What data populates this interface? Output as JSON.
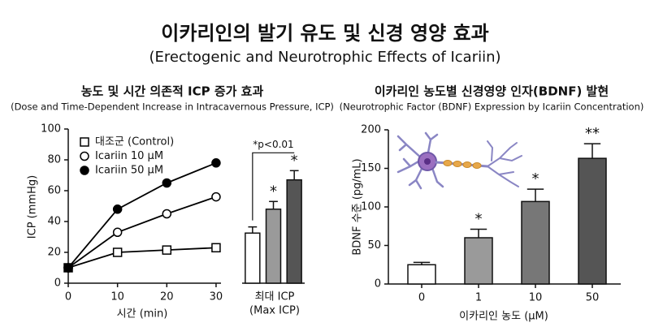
{
  "title": "이카리인의 발기 유도 및 신경 영양 효과",
  "subtitle": "(Erectogenic and Neurotrophic Effects of Icariin)",
  "chart_data": [
    {
      "type": "line",
      "title": "농도 및 시간 의존적 ICP 증가 효과",
      "subtitle": "(Dose and Time-Dependent Increase in Intracavernous Pressure, ICP)",
      "x_label": "시간 (min)",
      "y_label": "ICP (mmHg)",
      "x": [
        0,
        10,
        20,
        30
      ],
      "xlim": [
        0,
        31
      ],
      "xticks": [
        0,
        10,
        20,
        30
      ],
      "ylim": [
        0,
        100
      ],
      "yticks": [
        0,
        20,
        40,
        60,
        80,
        100
      ],
      "series": [
        {
          "name": "대조군 (Control)",
          "color": "#000000",
          "marker": "square",
          "marker_fill": "#ffffff",
          "values": [
            10,
            20,
            21.5,
            23
          ]
        },
        {
          "name": "Icariin 10 μM",
          "color": "#000000",
          "marker": "circle",
          "marker_fill": "#ffffff",
          "values": [
            10,
            33,
            45,
            56
          ]
        },
        {
          "name": "Icariin 50 μM",
          "color": "#000000",
          "marker": "circle",
          "marker_fill": "#000000",
          "values": [
            10,
            48,
            65,
            78
          ]
        }
      ]
    },
    {
      "type": "bar",
      "x_label_lines": [
        "최대 ICP",
        "(Max ICP)"
      ],
      "values": [
        32.5,
        48,
        67
      ],
      "errors": [
        4,
        5,
        6
      ],
      "colors": [
        "#ffffff",
        "#9a9a9a",
        "#555555"
      ],
      "significance": [
        null,
        "*",
        "*"
      ],
      "bracket_label": "*p<0.01",
      "ylim": [
        0,
        100
      ]
    },
    {
      "type": "bar",
      "title": "이카리인 농도별 신경영양 인자(BDNF) 발현",
      "subtitle": "(Neurotrophic Factor (BDNF) Expression by Icariin Concentration)",
      "x_label": "이카리인 농도 (μM)",
      "y_label": "BDNF 수준 (pg/mL)",
      "categories": [
        "0",
        "1",
        "10",
        "50"
      ],
      "values": [
        25,
        60,
        107,
        163
      ],
      "errors": [
        3,
        11,
        16,
        19
      ],
      "colors": [
        "#ffffff",
        "#9a9a9a",
        "#777777",
        "#555555"
      ],
      "significance": [
        null,
        "*",
        "*",
        "**"
      ],
      "ylim": [
        0,
        200
      ],
      "yticks": [
        0,
        50,
        100,
        150,
        200
      ]
    }
  ]
}
